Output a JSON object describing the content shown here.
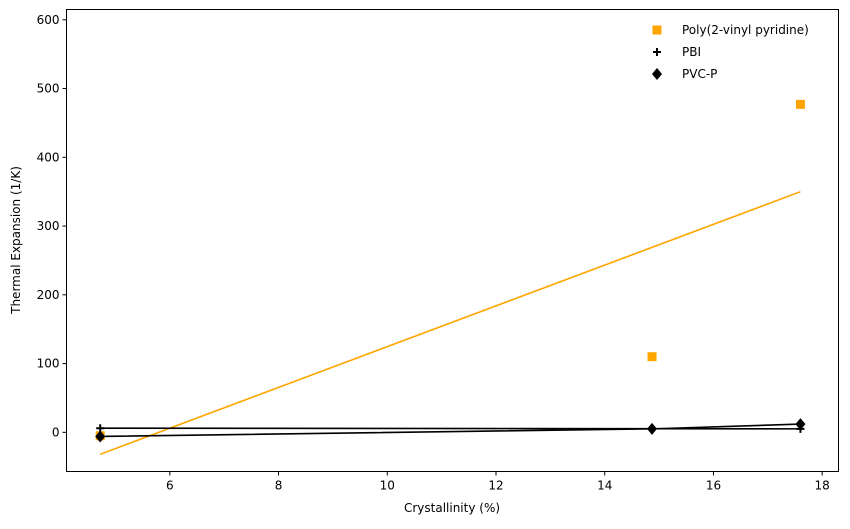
{
  "chart_data": {
    "type": "scatter",
    "title": "",
    "xlabel": "Crystallinity (%)",
    "ylabel": "Thermal Expansion (1/K)",
    "xlim": [
      4.1,
      18.3
    ],
    "ylim": [
      -57,
      615
    ],
    "xticks": [
      6,
      8,
      10,
      12,
      14,
      16,
      18
    ],
    "yticks": [
      0,
      100,
      200,
      300,
      400,
      500,
      600
    ],
    "grid": false,
    "legend_position": "top-right",
    "series": [
      {
        "name": "Poly(2-vinyl pyridine)",
        "marker": "square",
        "color": "#ffa500",
        "x": [
          4.72,
          14.87,
          17.6
        ],
        "y": [
          -5,
          110,
          477
        ],
        "trend_x": [
          4.72,
          17.6
        ],
        "trend_y": [
          -32,
          350
        ]
      },
      {
        "name": "PBI",
        "marker": "plus",
        "color": "#000000",
        "x": [
          4.72,
          14.87,
          17.6
        ],
        "y": [
          6,
          5,
          5
        ],
        "trend_x": [
          4.72,
          17.6
        ],
        "trend_y": [
          6,
          5
        ]
      },
      {
        "name": "PVC-P",
        "marker": "diamond",
        "color": "#000000",
        "x": [
          4.72,
          14.87,
          17.6
        ],
        "y": [
          -6,
          5,
          12
        ],
        "trend_x": [
          4.72,
          14.87,
          17.6
        ],
        "trend_y": [
          -6,
          5,
          12
        ]
      }
    ]
  }
}
